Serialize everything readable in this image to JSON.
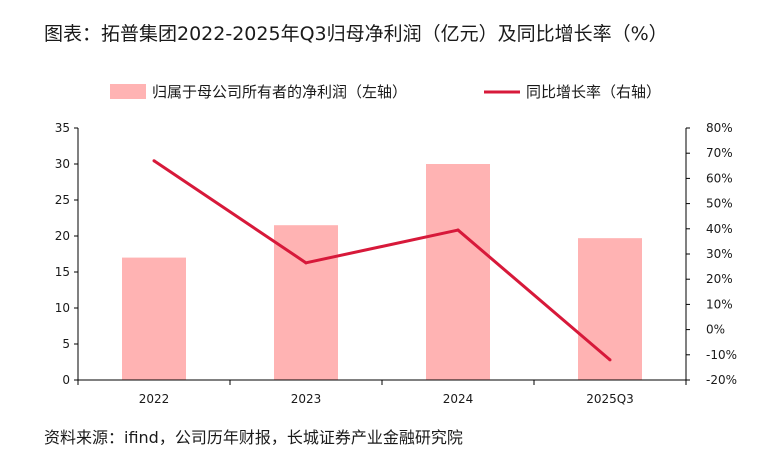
{
  "chart_data": {
    "type": "bar",
    "title": "图表：拓普集团2022-2025年Q3归母净利润（亿元）及同比增长率（%）",
    "categories": [
      "2022",
      "2023",
      "2024",
      "2025Q3"
    ],
    "series": [
      {
        "name": "归属于母公司所有者的净利润（左轴）",
        "type": "bar",
        "axis": "left",
        "color": "#ffb3b3",
        "values": [
          17.0,
          21.5,
          30.0,
          19.7
        ]
      },
      {
        "name": "同比增长率（右轴）",
        "type": "line",
        "axis": "right",
        "color": "#d7193a",
        "values": [
          67.0,
          26.5,
          39.5,
          -12.0
        ]
      }
    ],
    "y_left": {
      "min": 0,
      "max": 35,
      "ticks": [
        "0",
        "5",
        "10",
        "15",
        "20",
        "25",
        "30",
        "35"
      ]
    },
    "y_right": {
      "min": -20,
      "max": 80,
      "ticks": [
        "-20%",
        "-10%",
        "0%",
        "10%",
        "20%",
        "30%",
        "40%",
        "50%",
        "60%",
        "70%",
        "80%"
      ]
    },
    "grid": false,
    "legend": "top"
  },
  "source": "资料来源：ifind，公司历年财报，长城证券产业金融研究院"
}
